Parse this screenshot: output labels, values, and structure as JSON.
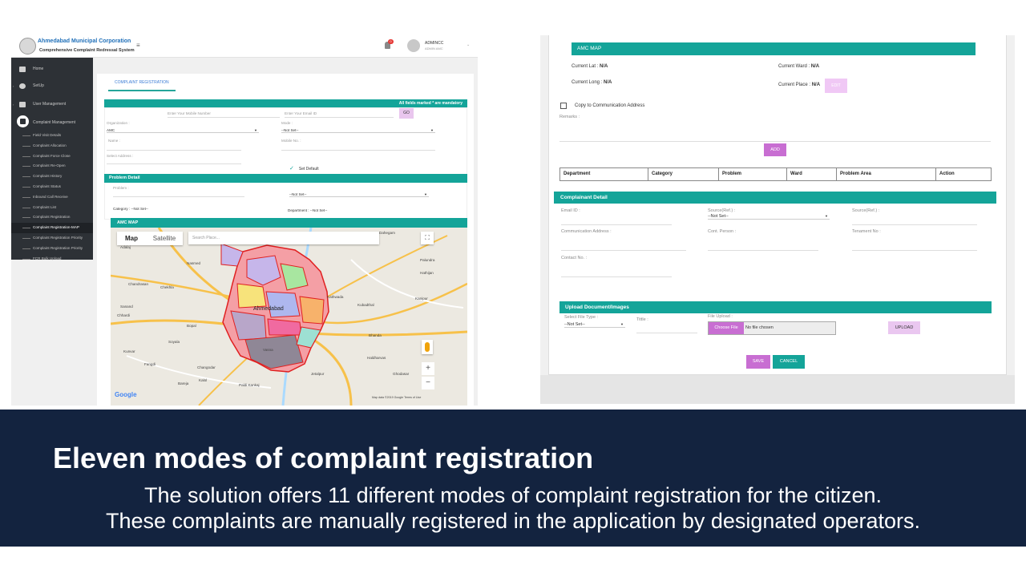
{
  "left": {
    "header": {
      "org_name": "Ahmedabad Municipal Corporation",
      "system_name": "Comprehensive Complaint Redressal System",
      "notification_count": "0",
      "user_name": "ADMINCC",
      "user_role": "ADMIN AMC"
    },
    "sidebar": {
      "items": [
        {
          "label": "Home",
          "icon": "home-icon"
        },
        {
          "label": "SetUp",
          "icon": "gear-icon"
        },
        {
          "label": "User Management",
          "icon": "users-icon"
        },
        {
          "label": "Complaint Management",
          "icon": "complaint-icon"
        }
      ],
      "sub_items": [
        "Field Visit Details",
        "Complaint Allocation",
        "Complaint Force Close",
        "Complaint Re-Open",
        "Complaint History",
        "Complaint Status",
        "Inbound Call Receive",
        "Complaint List",
        "Complaint Registration",
        "Complaint Registration-MAP",
        "Complaint Registration Priority",
        "Complaint Registration Priority",
        "FCR Bulk Upload"
      ],
      "active_sub_item": "Complaint Registration-MAP"
    },
    "content": {
      "tab_label": "COMPLAINT REGISTRATION",
      "mandatory_note": "All fields marked * are mandatory",
      "mobile_placeholder": "Enter Your Mobile Number",
      "email_placeholder": "Enter Your Email ID",
      "go_label": "GO",
      "organization_label": "Organization :",
      "organization_value": "AMC",
      "mode_label": "Mode :",
      "mode_value": "--Not Set--",
      "name_label": "Name :",
      "mobile_label": "Mobile No. :",
      "address_label": "Select Address :",
      "set_default_label": "Set Default",
      "problem_detail_title": "Problem Detail",
      "problem_label": "Problem :",
      "problem_select_value": "--Not Set--",
      "category_text": "Category : --Not Set--",
      "department_text": "Department : --Not Set--",
      "amc_map_title": "AMC MAP"
    },
    "map": {
      "tab_map": "Map",
      "tab_satellite": "Satellite",
      "search_placeholder": "Search Place...",
      "google": "Google",
      "attribution": "Map data ©2019 Google   Terms of Use",
      "place_labels": [
        "Dahegam",
        "Adalaj",
        "Nasmed",
        "Chandrasan",
        "Chekhla",
        "Ahmedabad",
        "Kathwada",
        "Kubadthal",
        "Sanand",
        "Chhardi",
        "Bopal",
        "Bhanda",
        "Kunvar",
        "Fangdi",
        "Soyala",
        "Changodar",
        "Kalol",
        "Paldi Kankaj",
        "Bareja",
        "Ghodasar",
        "Haldharvas",
        "Palundra",
        "Hathijan",
        "Kanipur",
        "Vasna",
        "Jetalpur"
      ],
      "colors": {
        "water": "#aadaff",
        "road": "#f7c14a",
        "ward_border": "#e02020"
      }
    }
  },
  "right": {
    "amc_map_title": "AMC MAP",
    "current_lat_label": "Current Lat :",
    "current_lat_value": "N/A",
    "current_long_label": "Current Long :",
    "current_long_value": "N/A",
    "current_ward_label": "Current Ward :",
    "current_ward_value": "N/A",
    "current_place_label": "Current Place :",
    "current_place_value": "N/A",
    "edit_label": "EDIT",
    "copy_address_label": "Copy to Communication Address",
    "remarks_label": "Remarks :",
    "add_label": "ADD",
    "table_headers": [
      "Department",
      "Category",
      "Problem",
      "Ward",
      "Problem Area",
      "Action"
    ],
    "complainant_title": "Complainant Detail",
    "email_label": "Email ID :",
    "source_ref_label": "Source(Ref.) :",
    "source_ref_value": "--Not Set--",
    "source_ref2_label": "Source(Ref.) :",
    "comm_address_label": "Communication Address :",
    "cont_person_label": "Cont. Person :",
    "tenement_label": "Tenament No :",
    "contact_label": "Contact No. :",
    "upload_title": "Upload Document/Images",
    "file_type_label": "Select File Type :",
    "file_type_value": "--Not Set--",
    "title_label": "Tittle :",
    "file_upload_label": "File Upload :",
    "choose_file_label": "Choose File",
    "no_file_label": "No file chosen",
    "upload_label": "UPLOAD",
    "save_label": "SAVE",
    "cancel_label": "CANCEL"
  },
  "banner": {
    "headline": "Eleven modes of complaint registration",
    "description_line1": "The solution offers 11 different modes of complaint registration for the citizen.",
    "description_line2": "These complaints are manually registered in the application by designated operators."
  },
  "colors": {
    "teal": "#14a499",
    "purple_button": "#c86ed2",
    "banner_bg": "#13233f",
    "sidebar_bg": "#2d3136"
  }
}
